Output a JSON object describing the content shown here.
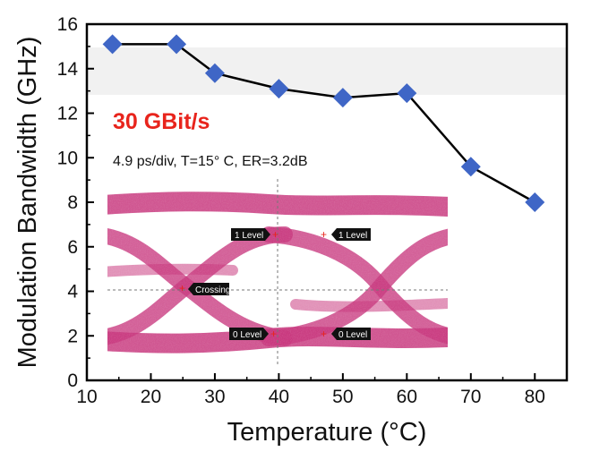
{
  "chart_data": {
    "type": "line",
    "title": "",
    "xlabel": "Temperature (°C)",
    "ylabel": "Modulation Bandwidth (GHz)",
    "xlim": [
      10,
      85
    ],
    "ylim": [
      0,
      16
    ],
    "xticks": [
      10,
      20,
      30,
      40,
      50,
      60,
      70,
      80
    ],
    "yticks": [
      0,
      2,
      4,
      6,
      8,
      10,
      12,
      14,
      16
    ],
    "grid": false,
    "marker": "diamond",
    "colors": {
      "marker": "#3f66c6",
      "line": "#000000",
      "annotation": "#e8241c",
      "eye": "#c8387e"
    },
    "series": [
      {
        "x": [
          14,
          24,
          30,
          40,
          50,
          60,
          70,
          80
        ],
        "y": [
          15.1,
          15.1,
          13.8,
          13.1,
          12.7,
          12.9,
          9.6,
          8.0
        ]
      }
    ],
    "annotation": "30 GBit/s",
    "inset": {
      "caption": "4.9 ps/div, T=15°  C, ER=3.2dB",
      "markers": [
        "1 Level",
        "1 Level",
        "Crossing",
        "0 Level",
        "0 Level"
      ]
    }
  }
}
